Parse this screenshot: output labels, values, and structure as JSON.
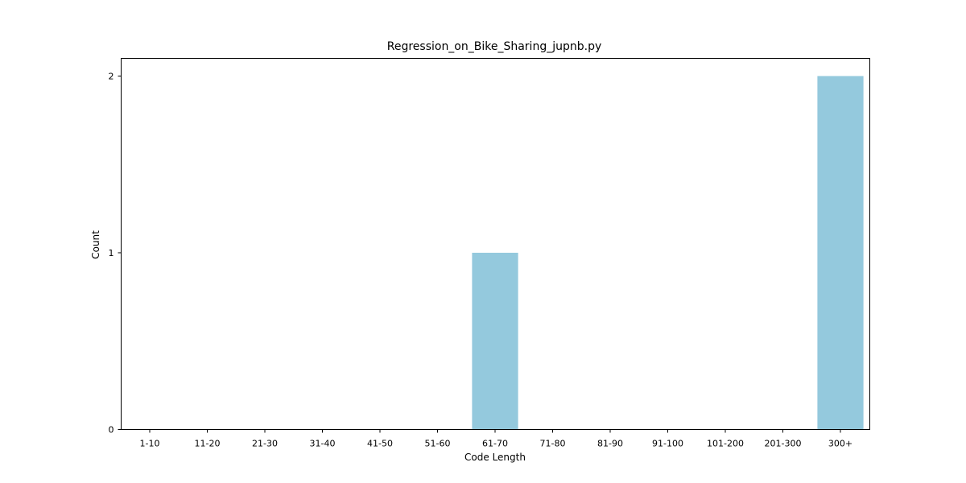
{
  "chart_data": {
    "type": "bar",
    "title": "Regression_on_Bike_Sharing_jupnb.py",
    "xlabel": "Code Length",
    "ylabel": "Count",
    "categories": [
      "1-10",
      "11-20",
      "21-30",
      "31-40",
      "41-50",
      "51-60",
      "61-70",
      "71-80",
      "81-90",
      "91-100",
      "101-200",
      "201-300",
      "300+"
    ],
    "values": [
      0,
      0,
      0,
      0,
      0,
      0,
      1,
      0,
      0,
      0,
      0,
      0,
      2
    ],
    "yticks": [
      0,
      1,
      2
    ],
    "ylim": [
      0,
      2.1
    ],
    "grid": false,
    "bar_color": "#94c9dd"
  }
}
